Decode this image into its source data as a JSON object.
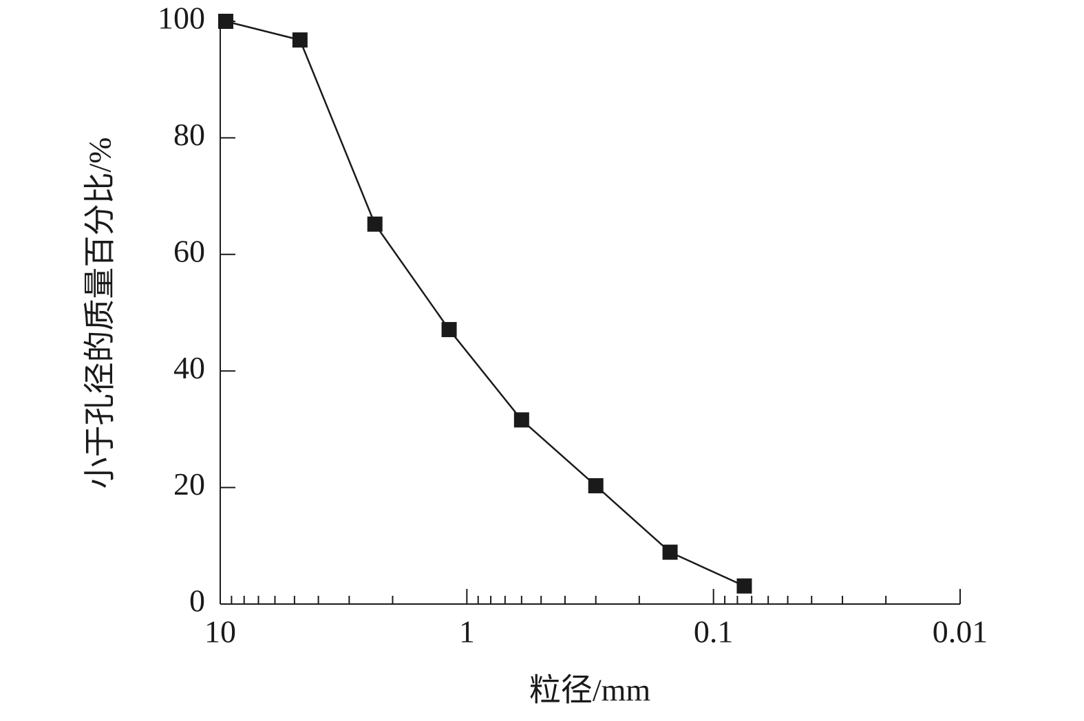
{
  "chart_data": {
    "type": "line",
    "x": [
      9.5,
      4.75,
      2.36,
      1.18,
      0.6,
      0.3,
      0.15,
      0.075
    ],
    "values": [
      100,
      96.8,
      65.2,
      47.1,
      31.6,
      20.3,
      8.9,
      3.1
    ],
    "color": "#1a1a1a",
    "marker": "square",
    "xlabel": "粒径/mm",
    "ylabel": "小于孔径的质量百分比/%",
    "xlog": true,
    "xlim": [
      10,
      0.01
    ],
    "xticks": [
      10,
      1,
      0.1,
      0.01
    ],
    "xminorticks": [
      9,
      8,
      7,
      6,
      5,
      4,
      3,
      2,
      0.9,
      0.8,
      0.7,
      0.6,
      0.5,
      0.4,
      0.3,
      0.2,
      0.09,
      0.08,
      0.07,
      0.06,
      0.05,
      0.04,
      0.03,
      0.02
    ],
    "ylim": [
      0,
      100
    ],
    "yticks": [
      0,
      20,
      40,
      60,
      80,
      100
    ],
    "grid": false
  }
}
